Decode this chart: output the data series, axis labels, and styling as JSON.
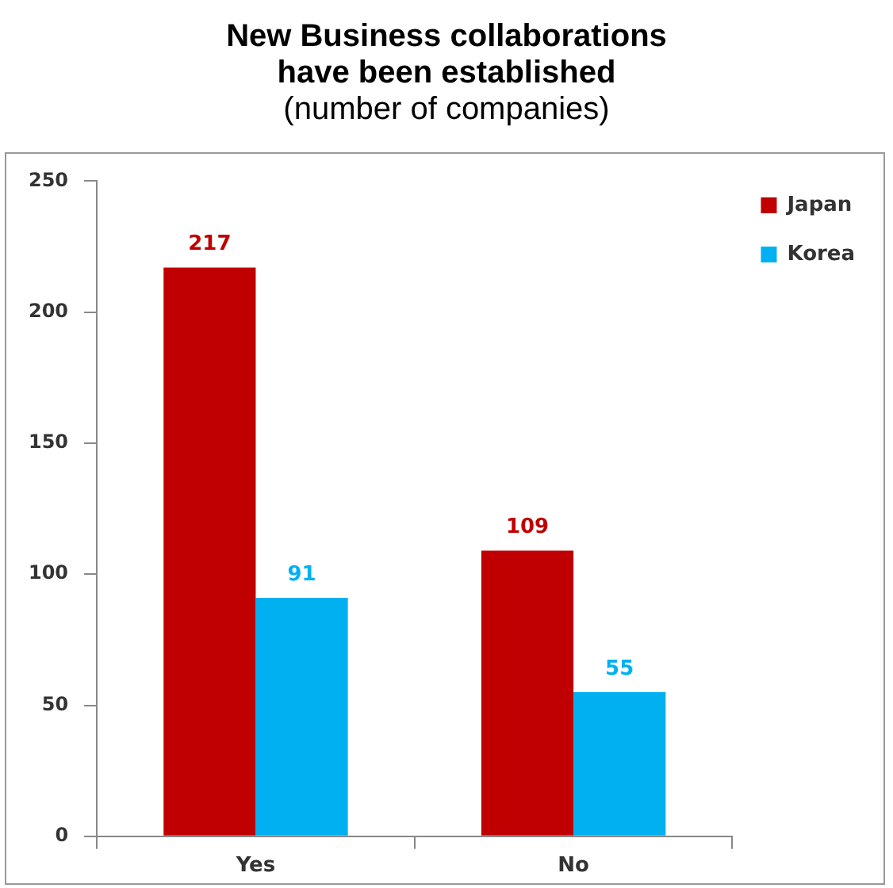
{
  "chart_data": {
    "type": "bar",
    "title": "New Business collaborations have been established",
    "subtitle": "(number of companies)",
    "categories": [
      "Yes",
      "No"
    ],
    "series": [
      {
        "name": "Japan",
        "color": "#c00000",
        "values": [
          217,
          109
        ]
      },
      {
        "name": "Korea",
        "color": "#00b0f0",
        "values": [
          91,
          55
        ]
      }
    ],
    "ylim": [
      0,
      250
    ],
    "yticks": [
      0,
      50,
      100,
      150,
      200,
      250
    ],
    "grid": false,
    "legend": "top right",
    "data_labels": true
  }
}
